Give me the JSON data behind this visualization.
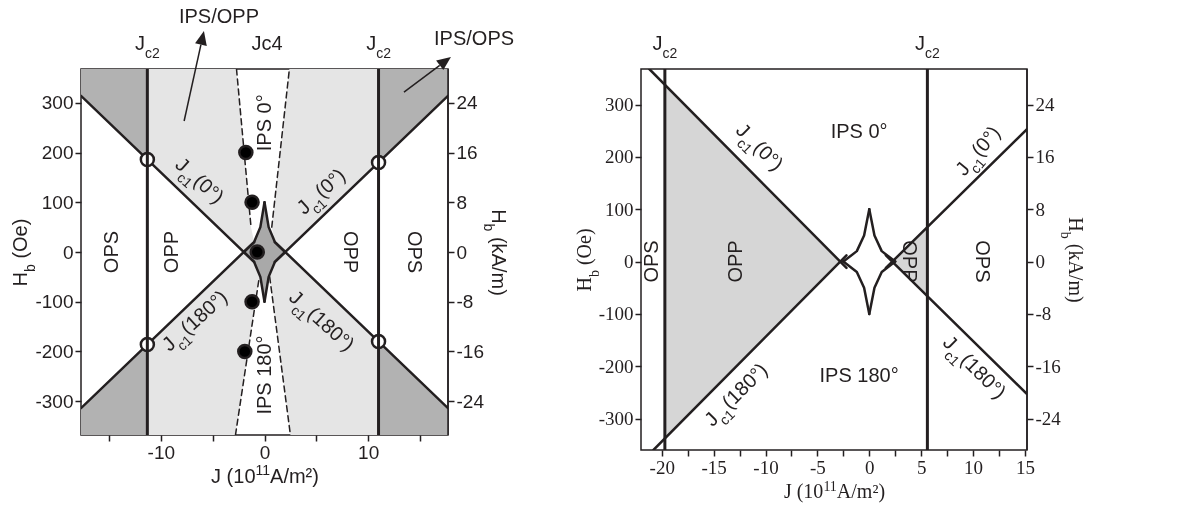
{
  "chart_data": [
    {
      "type": "line",
      "xlabel": "J (10$^{11}$A/m²)",
      "ylabel": "H$_{b}$ (Oe)",
      "y2label": "H$_{b}$ (kA/m)",
      "xlim": [
        -17.7,
        17.7
      ],
      "ylim": [
        -368,
        368
      ],
      "y2lim": [
        -29.44,
        29.44
      ],
      "xticks": [
        {
          "value": -15,
          "label": null
        },
        -10,
        {
          "value": -5,
          "label": null
        },
        0,
        {
          "value": 5,
          "label": null
        },
        10,
        {
          "value": 15,
          "label": null
        }
      ],
      "yticks": [
        -300,
        -200,
        -100,
        0,
        100,
        200,
        300
      ],
      "y2ticks": [
        -24,
        -16,
        -8,
        0,
        8,
        16,
        24
      ],
      "series": [
        {
          "color": "#231f20",
          "x": [
            -17.7,
            -1
          ],
          "values": [
            314,
            -20
          ]
        },
        {
          "color": "#231f20",
          "x": [
            1,
            17.7
          ],
          "values": [
            -20,
            314
          ]
        },
        {
          "color": "#231f20",
          "x": [
            -17.7,
            -1
          ],
          "values": [
            -314,
            20
          ]
        },
        {
          "color": "#231f20",
          "x": [
            1,
            17.7
          ],
          "values": [
            20,
            -314
          ]
        },
        {
          "color": "#231f20",
          "x": [
            -2,
            -1,
            -0.4,
            0
          ],
          "values": [
            0,
            20,
            50,
            100
          ]
        },
        {
          "color": "#231f20",
          "x": [
            0,
            0.4,
            1,
            2
          ],
          "values": [
            100,
            50,
            20,
            0
          ]
        },
        {
          "color": "#231f20",
          "x": [
            -2,
            -1,
            -0.4,
            0
          ],
          "values": [
            0,
            -20,
            -50,
            -100
          ]
        },
        {
          "color": "#231f20",
          "x": [
            0,
            0.4,
            1,
            2
          ],
          "values": [
            -100,
            -50,
            -20,
            0
          ]
        },
        {
          "color": "#231f20",
          "line_style": "dashed",
          "x": [
            -2.7,
            -1.3
          ],
          "values": [
            368,
            50
          ]
        },
        {
          "color": "#231f20",
          "line_style": "dashed",
          "x": [
            0.7,
            2.4
          ],
          "values": [
            50,
            368
          ]
        },
        {
          "color": "#231f20",
          "line_style": "dashed",
          "x": [
            -2.8,
            -0.5
          ],
          "values": [
            -368,
            -50
          ]
        },
        {
          "color": "#231f20",
          "line_style": "dashed",
          "x": [
            0.5,
            2.5
          ],
          "values": [
            -50,
            -368
          ]
        },
        {
          "type": "scatter",
          "marker": "circle",
          "color": "#000000",
          "x": [
            -1.8,
            -1.2,
            -0.7,
            -1.2,
            -1.9
          ],
          "values": [
            200,
            100,
            0,
            -100,
            -200
          ]
        },
        {
          "type": "scatter",
          "marker": "circle",
          "color": "#ffffff",
          "x": [
            -11.3,
            11.0,
            -11.3,
            11.0
          ],
          "values": [
            186,
            180,
            -186,
            -180
          ]
        }
      ],
      "ref_lines": [
        {
          "axis": "x",
          "value": -11.3,
          "label": "J$_{c2}$"
        },
        {
          "axis": "x",
          "value": 11.0,
          "label": "J$_{c2}$"
        }
      ],
      "annotations": [
        "IPS/OPP",
        "Jc4",
        "IPS/OPS",
        "OPS",
        "OPP",
        "OPP",
        "OPS",
        "IPS 0°",
        "IPS 180°",
        "J$_{c1}$(0°)",
        "J$_{c1}$(0°)",
        "J$_{c1}$(180°)",
        "J$_{c1}$(180°)"
      ]
    },
    {
      "type": "line",
      "xlabel": "J (10$^{11}$A/m²)",
      "ylabel": "H$_{b}$ (Oe)",
      "y2label": "H$_{b}$ (kA/m)",
      "xlim": [
        -22,
        15.2
      ],
      "ylim": [
        -360,
        368
      ],
      "y2lim": [
        -28.8,
        29.44
      ],
      "xticks": [
        -20,
        {
          "value": -17.5,
          "label": null
        },
        -15,
        {
          "value": -12.5,
          "label": null
        },
        -10,
        {
          "value": -7.5,
          "label": null
        },
        -5,
        {
          "value": -2.5,
          "label": null
        },
        0,
        {
          "value": 2.5,
          "label": null
        },
        5,
        {
          "value": 7.5,
          "label": null
        },
        10,
        {
          "value": 12.5,
          "label": null
        },
        15
      ],
      "yticks": [
        -300,
        -200,
        -100,
        0,
        100,
        200,
        300
      ],
      "y2ticks": [
        -24,
        -16,
        -8,
        0,
        8,
        16,
        24
      ],
      "series": [
        {
          "color": "#231f20",
          "x": [
            -21.2,
            -2.2
          ],
          "values": [
            368,
            -12
          ]
        },
        {
          "color": "#231f20",
          "x": [
            -20.8,
            -2.2
          ],
          "values": [
            -360,
            12
          ]
        },
        {
          "color": "#231f20",
          "x": [
            1.6,
            15.2
          ],
          "values": [
            -12,
            253
          ]
        },
        {
          "color": "#231f20",
          "x": [
            1.6,
            15.2
          ],
          "values": [
            12,
            -253
          ]
        },
        {
          "color": "#231f20",
          "x": [
            -2.5,
            -1.2,
            -0.5,
            0
          ],
          "values": [
            0,
            20,
            50,
            100
          ]
        },
        {
          "color": "#231f20",
          "x": [
            0,
            0.5,
            1.2,
            2.5
          ],
          "values": [
            100,
            50,
            20,
            0
          ]
        },
        {
          "color": "#231f20",
          "x": [
            -2.5,
            -1.2,
            -0.5,
            0
          ],
          "values": [
            0,
            -20,
            -50,
            -100
          ]
        },
        {
          "color": "#231f20",
          "x": [
            0,
            0.5,
            1.2,
            2.5
          ],
          "values": [
            -100,
            -50,
            -20,
            0
          ]
        }
      ],
      "ref_lines": [
        {
          "axis": "x",
          "value": -19.7,
          "label": "J$_{c2}$"
        },
        {
          "axis": "x",
          "value": 5.6,
          "label": "J$_{c2}$"
        }
      ],
      "annotations": [
        "OPS",
        "OPP",
        "OPP",
        "OPS",
        "IPS 0°",
        "IPS 180°",
        "J$_{c1}$(0°)",
        "J$_{c1}$(0°)",
        "J$_{c1}$(180°)",
        "J$_{c1}$(180°)"
      ]
    }
  ]
}
